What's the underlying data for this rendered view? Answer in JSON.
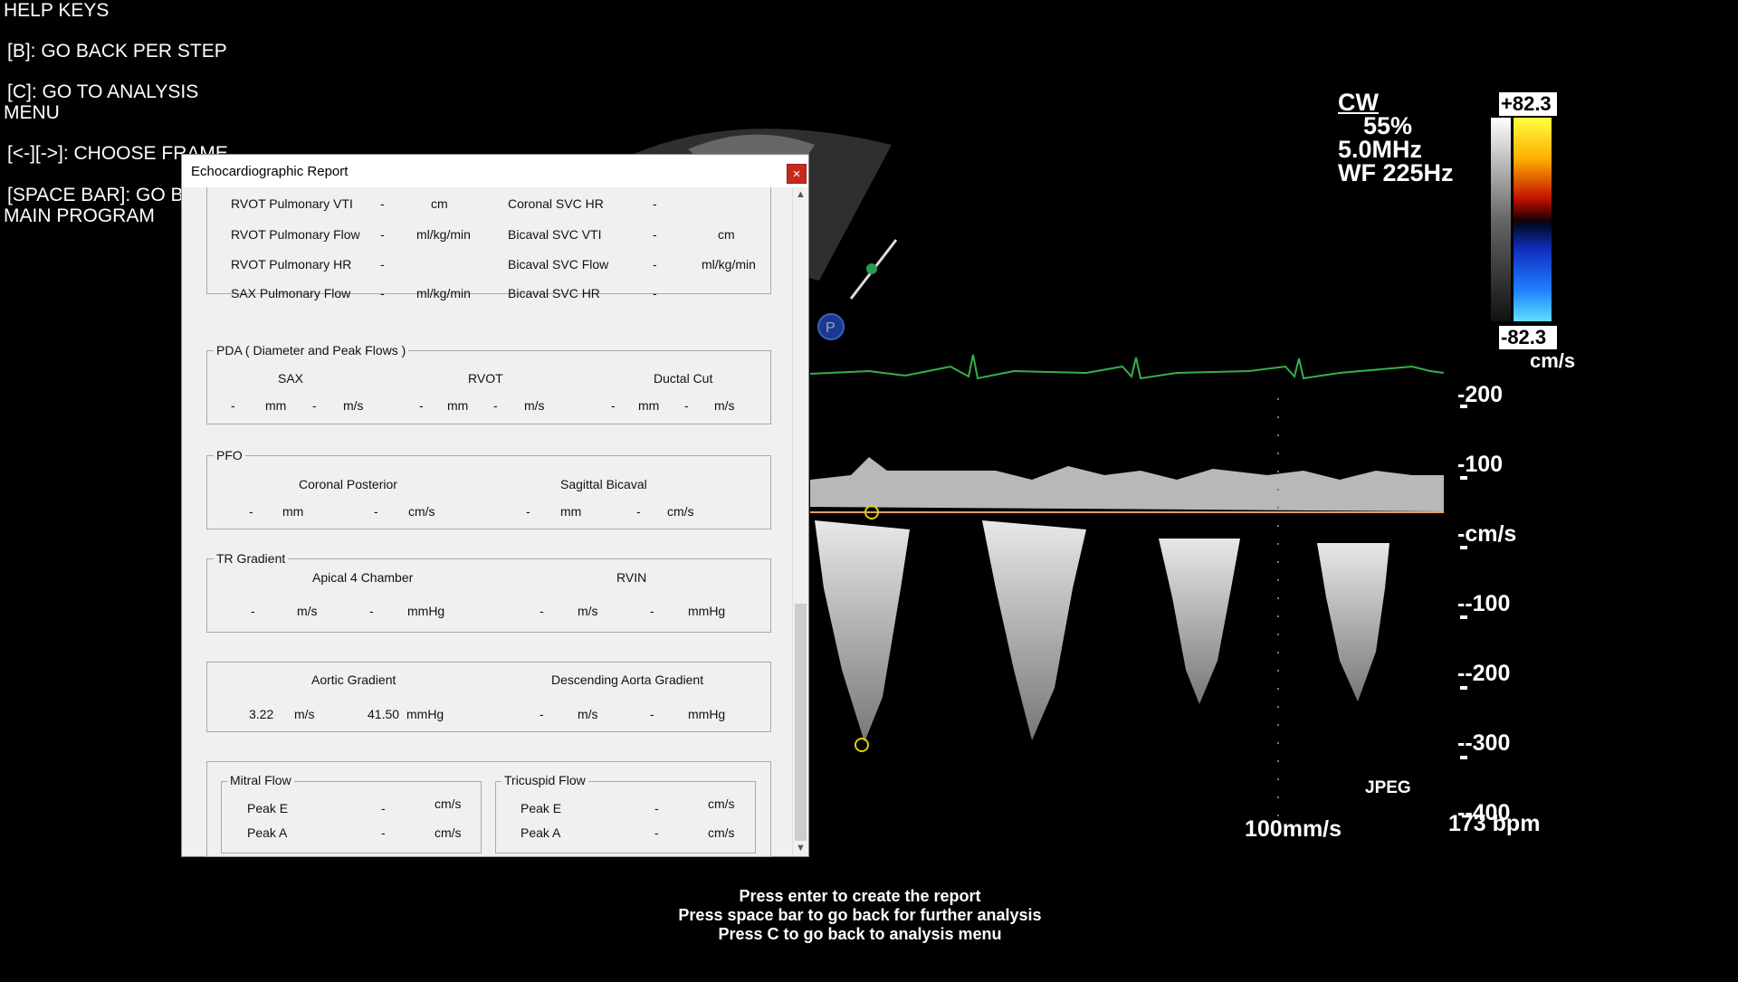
{
  "help": {
    "title": "HELP KEYS",
    "key_b": "[B]: GO BACK PER STEP",
    "key_c_1": "[C]: GO TO ANALYSIS",
    "key_c_2": "MENU",
    "key_arrows": "[<-][->]:  CHOOSE  FRAME",
    "key_space_1": "[SPACE BAR]: GO BACK TO",
    "key_space_2": "MAIN PROGRAM"
  },
  "ultrasound": {
    "mode": "CW",
    "gain": "55%",
    "freq": "5.0MHz",
    "wf": "WF 225Hz",
    "scale_top": "+82.3",
    "scale_bottom": "-82.3",
    "scale_unit": "cm/s",
    "axis": [
      "-200",
      "-100",
      "-cm/s",
      "--100",
      "--200",
      "--300",
      "--400"
    ],
    "format": "JPEG",
    "sweep": "100mm/s",
    "heart_rate": "173 bpm",
    "marker": "P",
    "colors": {
      "ecg": "#35b04a",
      "baseline": "#e0a060",
      "caliper": "#e6d000"
    }
  },
  "dialog": {
    "title": "Echocardiographic Report",
    "close_icon": "×",
    "rvot": {
      "rows": [
        {
          "l1": "RVOT Pulmonary VTI",
          "v1": "-",
          "u1": "cm",
          "l2": "Coronal SVC HR",
          "v2": "-",
          "u2": ""
        },
        {
          "l1": "RVOT Pulmonary Flow",
          "v1": "-",
          "u1": "ml/kg/min",
          "l2": "Bicaval SVC VTI",
          "v2": "-",
          "u2": "cm"
        },
        {
          "l1": "RVOT Pulmonary HR",
          "v1": "-",
          "u1": "",
          "l2": "Bicaval SVC Flow",
          "v2": "-",
          "u2": "ml/kg/min"
        },
        {
          "l1": "SAX Pulmonary Flow",
          "v1": "-",
          "u1": "ml/kg/min",
          "l2": "Bicaval SVC HR",
          "v2": "-",
          "u2": ""
        }
      ]
    },
    "pda": {
      "legend": "PDA ( Diameter and Peak Flows )",
      "sax": "SAX",
      "rvot": "RVOT",
      "ductal": "Ductal Cut",
      "dash": "-",
      "mm": "mm",
      "ms": "m/s"
    },
    "pfo": {
      "legend": "PFO",
      "coronal": "Coronal Posterior",
      "sagittal": "Sagittal Bicaval",
      "dash": "-",
      "mm": "mm",
      "cms": "cm/s"
    },
    "tr": {
      "legend": "TR Gradient",
      "apical": "Apical 4 Chamber",
      "rvin": "RVIN",
      "dash": "-",
      "ms": "m/s",
      "mmhg": "mmHg"
    },
    "aortic": {
      "aortic_label": "Aortic Gradient",
      "desc_label": "Descending Aorta Gradient",
      "aortic_v": "3.22",
      "aortic_g": "41.50",
      "dash": "-",
      "ms": "m/s",
      "mmhg": "mmHg"
    },
    "mitral": {
      "legend": "Mitral Flow",
      "peak_e": "Peak E",
      "peak_a": "Peak A",
      "dash": "-",
      "unit": "cm/s"
    },
    "tricuspid": {
      "legend": "Tricuspid Flow",
      "peak_e": "Peak E",
      "peak_a": "Peak A",
      "dash": "-",
      "unit": "cm/s"
    }
  },
  "instructions": {
    "line1": "Press enter to create the report",
    "line2": "Press space bar to go back for further analysis",
    "line3": "Press C to go back to analysis menu"
  }
}
